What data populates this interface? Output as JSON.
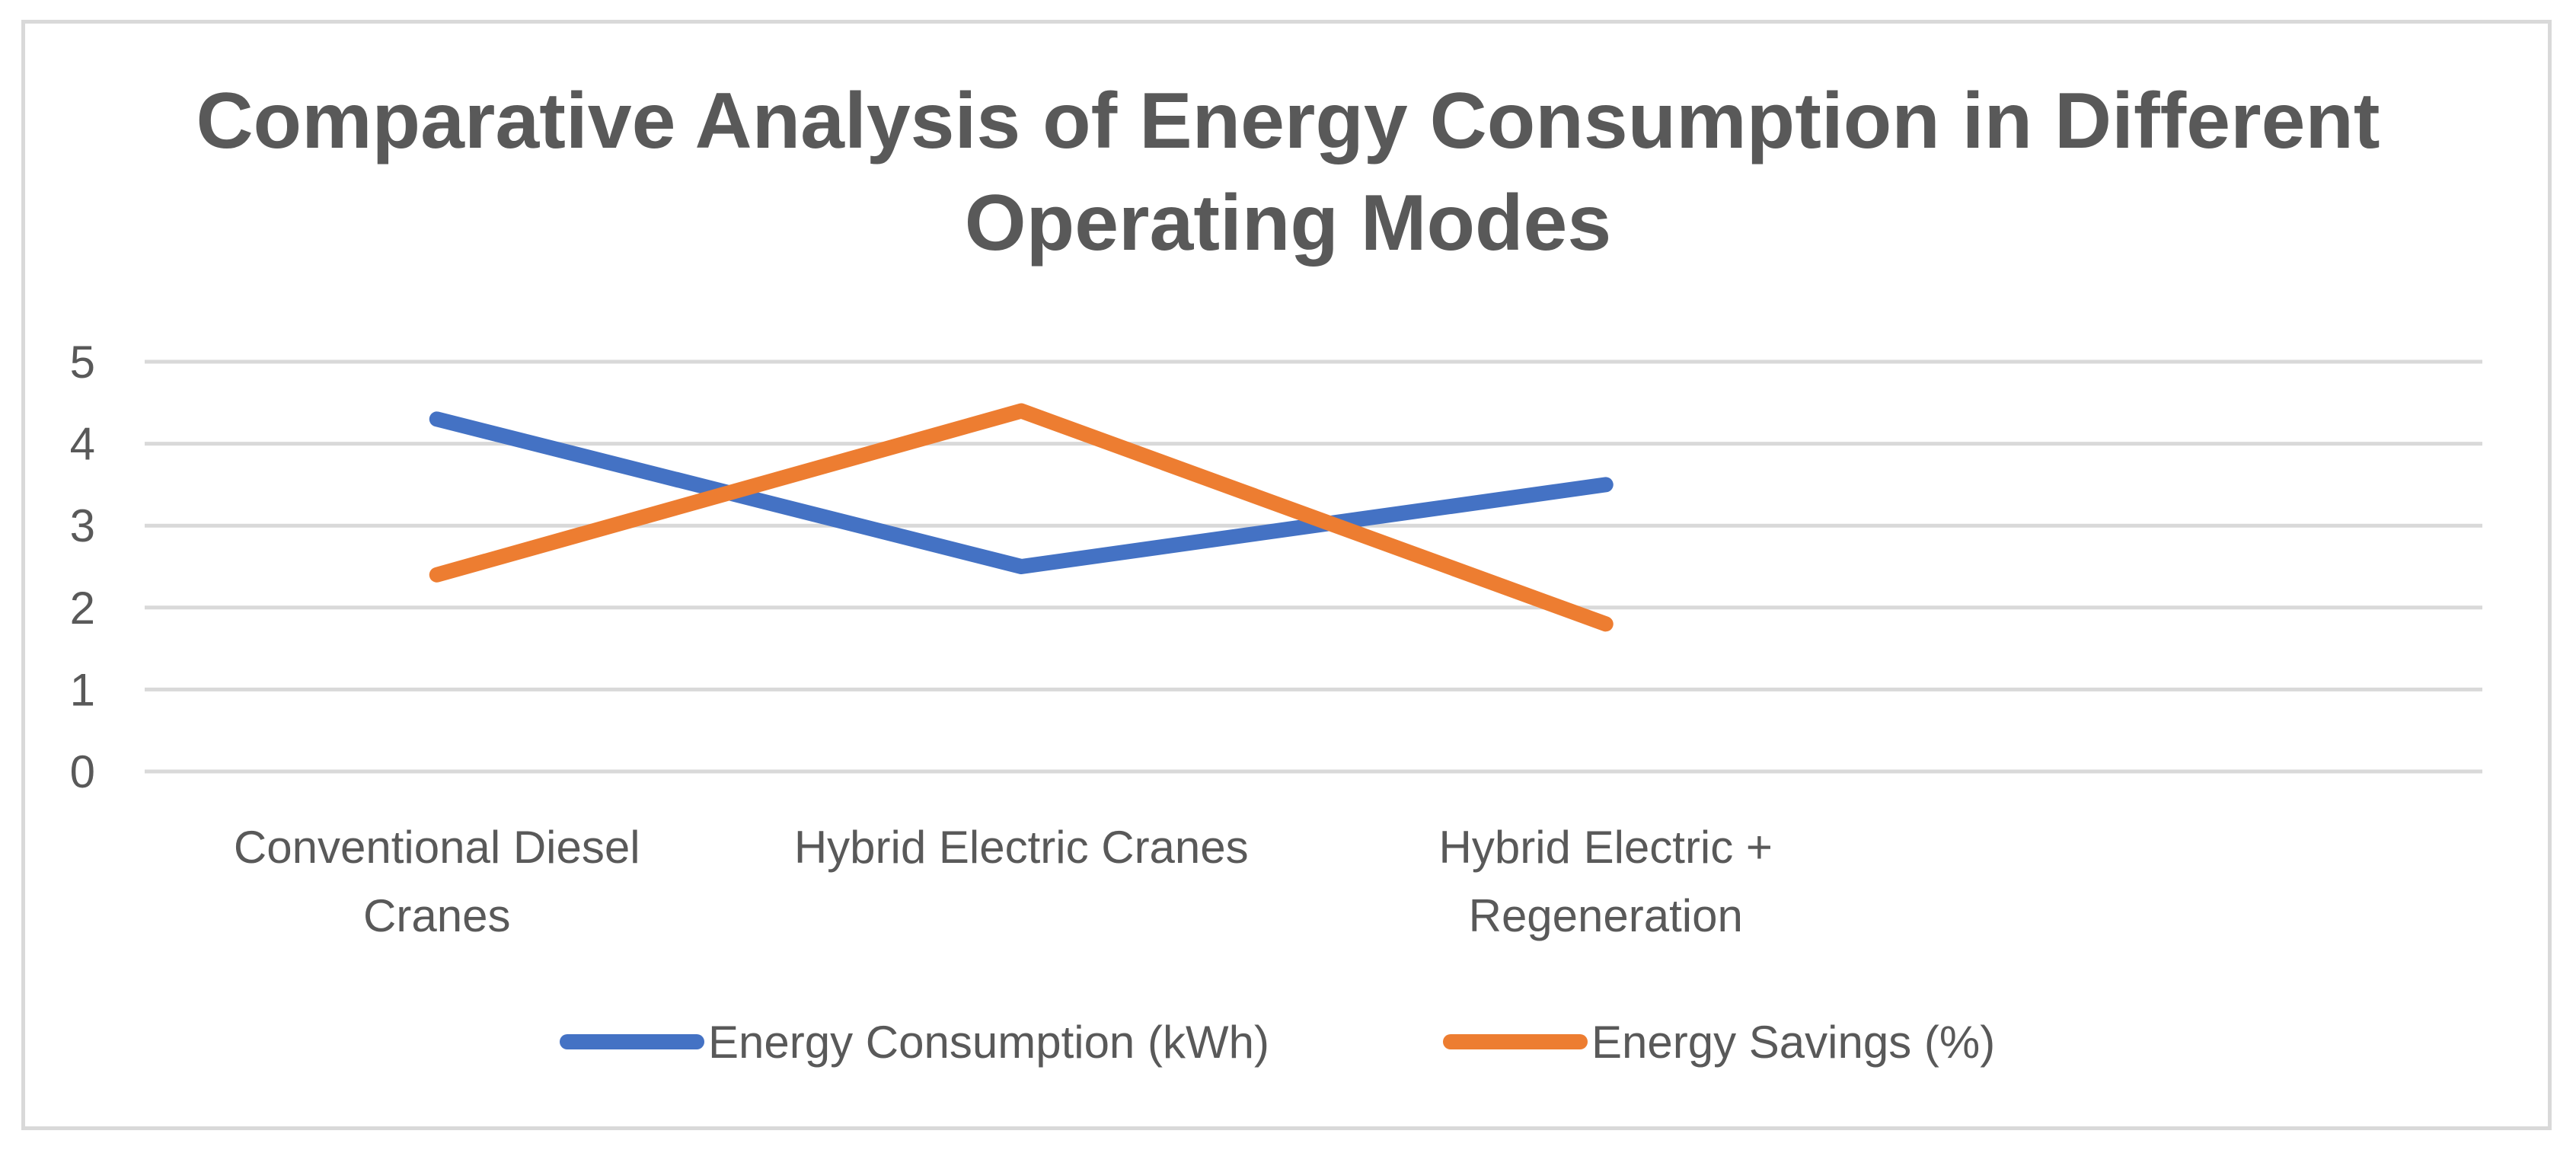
{
  "chart_data": {
    "type": "line",
    "title": "Comparative Analysis of Energy Consumption in Different Operating Modes",
    "categories": [
      [
        "Conventional Diesel",
        "Cranes"
      ],
      [
        "Hybrid Electric Cranes"
      ],
      [
        "Hybrid Electric +",
        "Regeneration"
      ]
    ],
    "category_slots": 4,
    "yticks": [
      "0",
      "1",
      "2",
      "3",
      "4",
      "5"
    ],
    "ylim": [
      0,
      5
    ],
    "grid": true,
    "legend_position": "bottom",
    "series": [
      {
        "name": "Energy Consumption (kWh)",
        "values": [
          4.3,
          2.5,
          3.5
        ],
        "color": "#4472c4"
      },
      {
        "name": "Energy Savings (%)",
        "values": [
          2.4,
          4.4,
          1.8
        ],
        "color": "#ed7d31"
      }
    ]
  }
}
